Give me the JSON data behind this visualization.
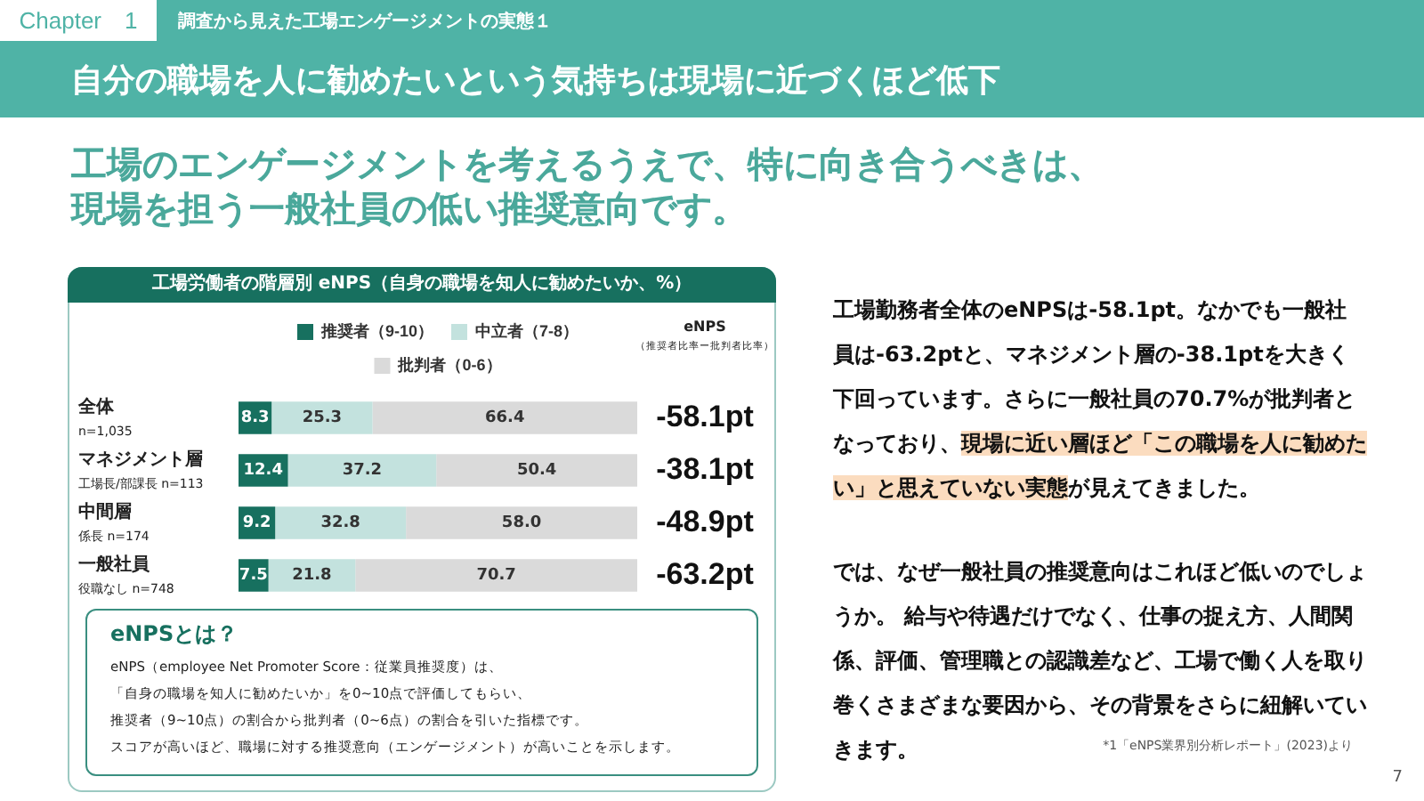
{
  "chart_data": {
    "type": "bar",
    "orientation": "horizontal",
    "stacked": true,
    "title": "自分の職場を人に勧めたいという気持ちは現場に近づくほど低下",
    "subtitle": "工場のエンゲージメントを考えるうえで、特に向き合うべきは、現場を担う一般社員の低い推奨意向です。",
    "categories": [
      "全体",
      "マネジメント層",
      "中間層",
      "一般社員"
    ],
    "series": [
      {
        "name": "推奨者（9-10）",
        "color": "#17705f",
        "values": [
          8.3,
          12.4,
          9.2,
          7.5
        ]
      },
      {
        "name": "中立者（7-8）",
        "color": "#c3e2de",
        "values": [
          25.3,
          37.2,
          32.8,
          21.8
        ]
      },
      {
        "name": "批判者（0-6）",
        "color": "#dadada",
        "values": [
          66.4,
          50.4,
          58.0,
          70.7
        ],
        "value_labels": [
          "66.4",
          "50.4",
          "58.0",
          "70.7"
        ]
      }
    ],
    "xlim": [
      0,
      100
    ],
    "tick_labels": "y",
    "legend": "top",
    "data_labels": true,
    "annotations": [
      "Chapter　1",
      "調査から見えた工場エンゲージメントの実態１",
      "工場労働者の階層別 eNPS（自身の職場を知人に勧めたいか、%）",
      "eNPS",
      "（推奨者比率ー批判者比率）",
      "-58.1pt",
      "-38.1pt",
      "-48.9pt",
      "-63.2pt",
      "n=1,035",
      "工場長/部課長 n=113",
      "係長 n=174",
      "役職なし n=748",
      "eNPSとは？",
      "eNPS（employee Net Promoter Score：従業員推奨度）は、",
      "「自身の職場を知人に勧めたいか」を0~10点で評価してもらい、",
      "推奨者（9~10点）の割合から批判者（0~6点）の割合を引いた指標です。",
      "スコアが高いほど、職場に対する推奨意向（エンゲージメント）が高いことを示します。",
      "工場勤務者全体のeNPSは-58.1pt。なかでも一般社員は-63.2ptと、マネジメント層の-38.1ptを大きく下回っています。さらに一般社員の70.7%が批判者となっており、",
      "現場に近い層ほど「この職場を人に勧めたい」と思えていない実態",
      "が見えてきました。",
      "では、なぜ一般社員の推奨意向はこれほど低いのでしょうか。 給与や待遇だけでなく、仕事の捉え方、人間関係、評価、管理職との認識差など、工場で働く人を取り巻くさまざまな要因から、その背景をさらに紐解いていきます。",
      "*1「eNPS業界別分析レポート」(2023)より",
      "7"
    ]
  }
}
